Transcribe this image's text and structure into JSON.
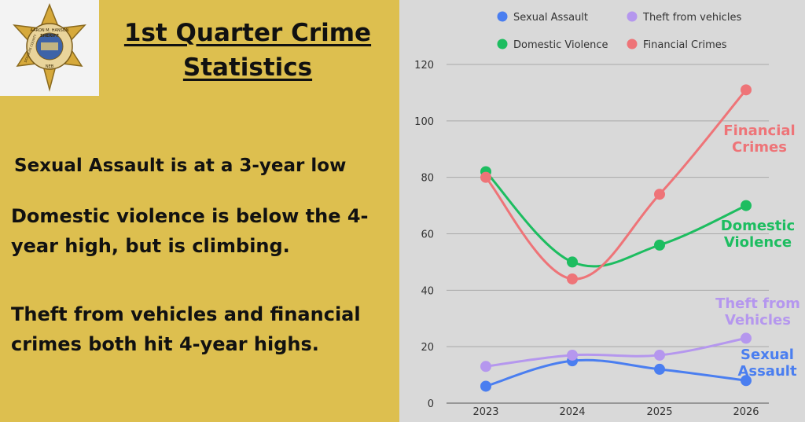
{
  "title": "1st Quarter Crime Statistics",
  "statements": [
    "Sexual Assault is at a 3-year low",
    "Domestic violence is below the 4-year high, but is climbing.",
    "Theft from vehicles and financial crimes both hit 4-year highs."
  ],
  "badge": {
    "text_top": "AARON M. HANSON",
    "text_mid": "SHERIFF",
    "text_side": "DOUGLAS COUNTY",
    "text_bottom": "NEB"
  },
  "chart_data": {
    "type": "line",
    "x": [
      "2023",
      "2024",
      "2025",
      "2026"
    ],
    "ylim": [
      0,
      120
    ],
    "yticks": [
      0,
      20,
      40,
      60,
      80,
      100,
      120
    ],
    "grid": true,
    "legend": "top",
    "series": [
      {
        "name": "Sexual Assault",
        "color": "#4a7ef0",
        "values": [
          6,
          15,
          12,
          8
        ],
        "annotation": [
          "Sexual",
          "Assault"
        ]
      },
      {
        "name": "Theft from vehicles",
        "color": "#b597ee",
        "values": [
          13,
          17,
          17,
          23
        ],
        "annotation": [
          "Theft from",
          "Vehicles"
        ]
      },
      {
        "name": "Domestic Violence",
        "color": "#1dbd60",
        "values": [
          82,
          50,
          56,
          70
        ],
        "annotation": [
          "Domestic",
          "Violence"
        ]
      },
      {
        "name": "Financial Crimes",
        "color": "#ee7478",
        "values": [
          80,
          44,
          74,
          111
        ],
        "annotation": [
          "Financial",
          "Crimes"
        ]
      }
    ]
  }
}
